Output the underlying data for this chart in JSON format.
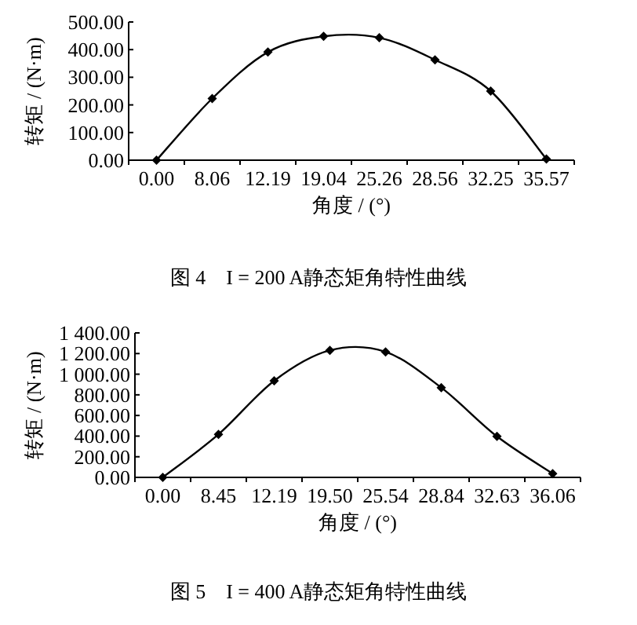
{
  "chart_data": [
    {
      "type": "line",
      "title": "图 4　I = 200 A静态矩角特性曲线",
      "xlabel": "角度 / (°)",
      "ylabel": "转矩 / (N·m)",
      "categories": [
        "0.00",
        "8.06",
        "12.19",
        "19.04",
        "25.26",
        "28.56",
        "32.25",
        "35.57"
      ],
      "series": [
        {
          "color": "#000000",
          "values": [
            0,
            223,
            391,
            448,
            443,
            363,
            250,
            4
          ]
        }
      ],
      "ylim": [
        0,
        500
      ],
      "yticks": [
        {
          "value": 0,
          "label": "0.00"
        },
        {
          "value": 100,
          "label": "100.00"
        },
        {
          "value": 200,
          "label": "200.00"
        },
        {
          "value": 300,
          "label": "300.00"
        },
        {
          "value": 400,
          "label": "400.00"
        },
        {
          "value": 500,
          "label": "500.00"
        }
      ],
      "marker": "diamond",
      "line_style": "solid"
    },
    {
      "type": "line",
      "title": "图 5　I = 400 A静态矩角特性曲线",
      "xlabel": "角度 / (°)",
      "ylabel": "转矩 / (N·m)",
      "categories": [
        "0.00",
        "8.45",
        "12.19",
        "19.50",
        "25.54",
        "28.84",
        "32.63",
        "36.06"
      ],
      "series": [
        {
          "color": "#000000",
          "values": [
            0,
            417,
            936,
            1231,
            1216,
            870,
            397,
            36
          ]
        }
      ],
      "ylim": [
        0,
        1400
      ],
      "yticks": [
        {
          "value": 0,
          "label": "0.00"
        },
        {
          "value": 200,
          "label": "200.00"
        },
        {
          "value": 400,
          "label": "400.00"
        },
        {
          "value": 600,
          "label": "600.00"
        },
        {
          "value": 800,
          "label": "800.00"
        },
        {
          "value": 1000,
          "label": "1 000.00"
        },
        {
          "value": 1200,
          "label": "1 200.00"
        },
        {
          "value": 1400,
          "label": "1 400.00"
        }
      ],
      "marker": "diamond",
      "line_style": "solid"
    }
  ]
}
